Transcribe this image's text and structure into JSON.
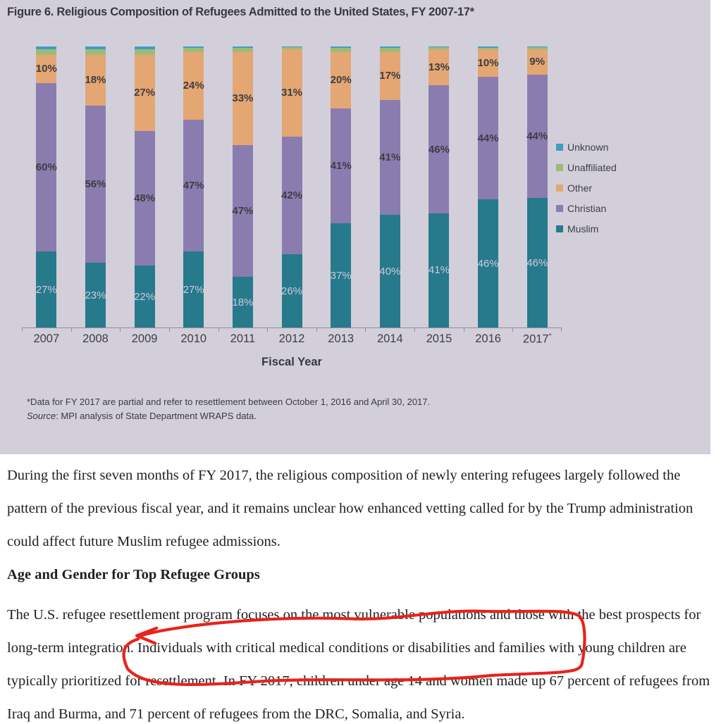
{
  "figure": {
    "title": "Figure 6. Religious Composition of Refugees Admitted to the United States, FY 2007-17*",
    "xlabel": "Fiscal Year",
    "footnote": "*Data for FY 2017 are partial and refer to resettlement between October 1, 2016 and April 30, 2017.",
    "source_label": "Source",
    "source_text": ": MPI analysis of State Department WRAPS data.",
    "background_color": "#D2CFDB",
    "legend": [
      {
        "label": "Unknown",
        "color": "#3D9EC4"
      },
      {
        "label": "Unaffiliated",
        "color": "#9DBB76"
      },
      {
        "label": "Other",
        "color": "#E4A672"
      },
      {
        "label": "Christian",
        "color": "#8B7CB0"
      },
      {
        "label": "Muslim",
        "color": "#27798C"
      }
    ]
  },
  "chart_data": {
    "type": "bar",
    "stacked": true,
    "unit": "percent",
    "title": "Figure 6. Religious Composition of Refugees Admitted to the United States, FY 2007-17*",
    "xlabel": "Fiscal Year",
    "ylabel": "",
    "ylim": [
      0,
      100
    ],
    "grid": false,
    "legend_position": "right",
    "categories": [
      "2007",
      "2008",
      "2009",
      "2010",
      "2011",
      "2012",
      "2013",
      "2014",
      "2015",
      "2016",
      "2017*"
    ],
    "series": [
      {
        "name": "Muslim",
        "color": "#27798C",
        "labeled": true,
        "label_style": "light",
        "values": [
          27,
          23,
          22,
          27,
          18,
          26,
          37,
          40,
          41,
          46,
          46
        ]
      },
      {
        "name": "Christian",
        "color": "#8B7CB0",
        "labeled": true,
        "label_style": "dark",
        "values": [
          60,
          56,
          48,
          47,
          47,
          42,
          41,
          41,
          46,
          44,
          44
        ]
      },
      {
        "name": "Other",
        "color": "#E4A672",
        "labeled": true,
        "label_style": "dark",
        "values": [
          10,
          18,
          27,
          24,
          33,
          31,
          20,
          17,
          13,
          10,
          9
        ]
      },
      {
        "name": "Unaffiliated",
        "color": "#9DBB76",
        "labeled": false,
        "label_style": "none",
        "values": [
          2,
          2,
          2,
          1.5,
          1.5,
          0.7,
          1.5,
          1.5,
          0.7,
          0.5,
          0.7
        ]
      },
      {
        "name": "Unknown",
        "color": "#3D9EC4",
        "labeled": false,
        "label_style": "none",
        "values": [
          1,
          1,
          1,
          0.5,
          0.5,
          0.3,
          0.5,
          0.5,
          0.3,
          0.5,
          0.3
        ]
      }
    ]
  },
  "article": {
    "para1": "During the first seven months of FY 2017, the religious composition of newly entering refugees largely followed the pattern of the previous fiscal year, and it remains unclear how enhanced vetting called for by the Trump administration could affect future Muslim refugee admissions.",
    "heading": "Age and Gender for Top Refugee Groups",
    "para2_before": "The U.S. refugee resettlement program focuses on the most vulnerable populations and those with the best prospects for long-term integration. ",
    "para2_highlight": "Individuals with critical medical conditions or disabilities and families with",
    "para2_after": " young children are typically prioritized for resettlement. In FY 2017, children under age 14 and women made up 67 percent of refugees from Iraq and Burma, and 71 percent of refugees from the DRC, Somalia, and Syria."
  },
  "annotation": {
    "type": "hand-drawn-circle",
    "color": "#E8231B",
    "around_text": "Individuals with critical medical conditions or disabilities and families with"
  }
}
